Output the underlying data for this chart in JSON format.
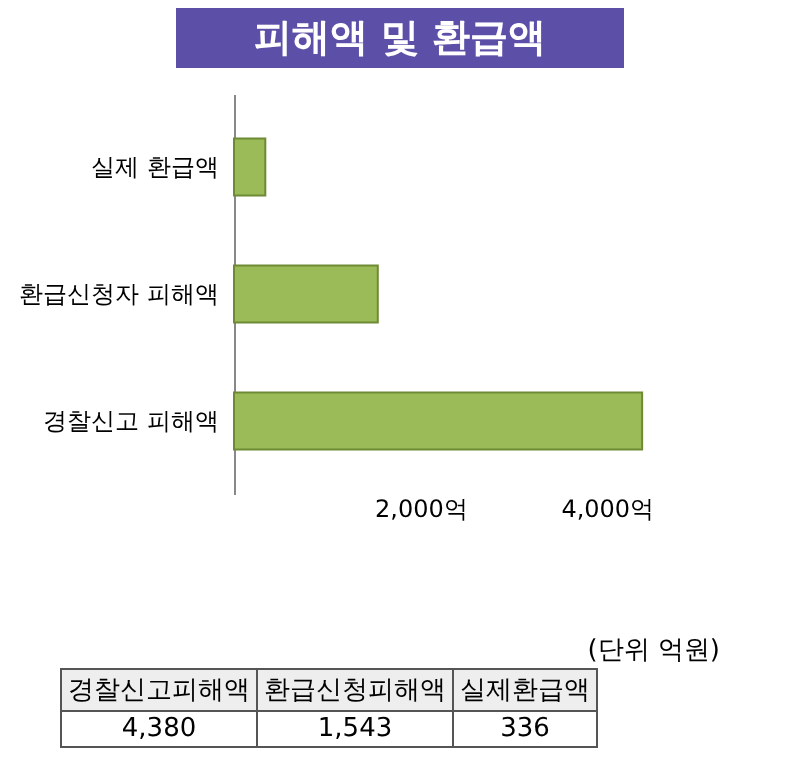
{
  "chart_data": {
    "type": "bar",
    "orientation": "horizontal",
    "title": "피해액 및 환급액",
    "categories": [
      "실제 환급액",
      "환급신청자 피해액",
      "경찰신고 피해액"
    ],
    "values": [
      336,
      1543,
      4380
    ],
    "color": "#9bbb59",
    "xlim": [
      0,
      4400
    ],
    "xticks": [
      {
        "value": 2000,
        "label": "2,000억"
      },
      {
        "value": 4000,
        "label": "4,000억"
      }
    ],
    "grid": false,
    "annotations": [
      "(단위 억원)",
      "경찰신고피해액",
      "환급신청피해액",
      "실제환급액",
      "4,380",
      "1,543",
      "336"
    ]
  }
}
